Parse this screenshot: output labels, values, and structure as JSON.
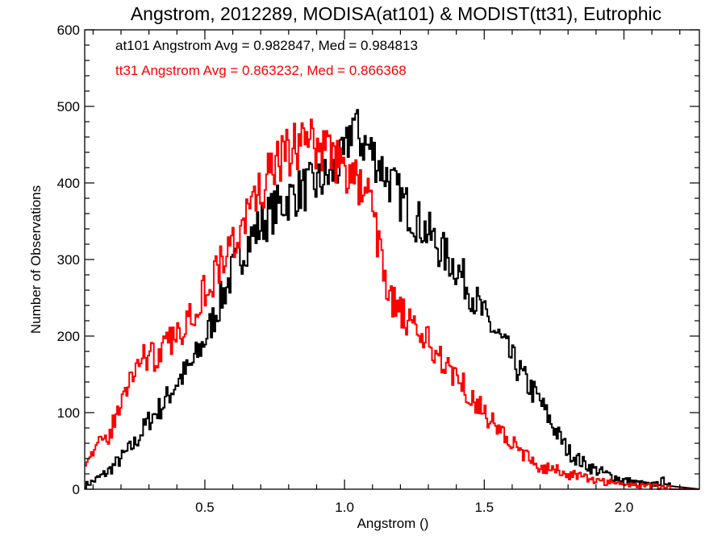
{
  "chart_data": {
    "type": "histogram",
    "title": "Angstrom, 2012289, MODISA(at101) & MODIST(tt31), Eutrophic",
    "xlabel": "Angstrom ()",
    "ylabel": "Number of Observations",
    "xlim": [
      0.07,
      2.27
    ],
    "ylim": [
      0,
      600
    ],
    "x_ticks": [
      0.5,
      1.0,
      1.5,
      2.0
    ],
    "x_tick_labels": [
      "0.5",
      "1.0",
      "1.5",
      "2.0"
    ],
    "y_ticks": [
      0,
      100,
      200,
      300,
      400,
      500,
      600
    ],
    "y_tick_labels": [
      "0",
      "100",
      "200",
      "300",
      "400",
      "500",
      "600"
    ],
    "grid": false,
    "annotations": [
      {
        "text": "at101 Angstrom Avg = 0.982847, Med = 0.984813",
        "color": "#000000"
      },
      {
        "text": "tt31 Angstrom Avg = 0.863232, Med = 0.866368",
        "color": "#ff0000"
      }
    ],
    "series": [
      {
        "color": "#000000",
        "x": [
          0.07,
          0.1,
          0.15,
          0.2,
          0.25,
          0.3,
          0.35,
          0.4,
          0.45,
          0.5,
          0.55,
          0.6,
          0.65,
          0.7,
          0.75,
          0.8,
          0.85,
          0.9,
          0.95,
          1.0,
          1.03,
          1.05,
          1.1,
          1.15,
          1.2,
          1.25,
          1.3,
          1.35,
          1.4,
          1.45,
          1.5,
          1.55,
          1.6,
          1.65,
          1.7,
          1.72,
          1.75,
          1.8,
          1.85,
          1.9,
          1.95,
          2.0,
          2.05,
          2.1,
          2.15,
          2.17,
          2.27
        ],
        "y": [
          5,
          10,
          22,
          40,
          60,
          90,
          110,
          140,
          160,
          195,
          240,
          285,
          320,
          345,
          365,
          380,
          392,
          398,
          410,
          430,
          485,
          460,
          440,
          410,
          380,
          355,
          335,
          310,
          290,
          260,
          225,
          200,
          170,
          140,
          115,
          100,
          80,
          50,
          35,
          25,
          18,
          12,
          8,
          5,
          12,
          0,
          0
        ]
      },
      {
        "color": "#ff0000",
        "x": [
          0.07,
          0.1,
          0.15,
          0.2,
          0.25,
          0.28,
          0.3,
          0.35,
          0.4,
          0.45,
          0.5,
          0.55,
          0.6,
          0.65,
          0.7,
          0.75,
          0.8,
          0.85,
          0.9,
          0.95,
          1.0,
          1.05,
          1.1,
          1.15,
          1.2,
          1.25,
          1.3,
          1.35,
          1.4,
          1.45,
          1.5,
          1.55,
          1.6,
          1.65,
          1.7,
          1.75,
          1.8,
          1.85,
          1.9,
          1.95,
          2.0,
          2.05,
          2.1,
          2.15,
          2.17,
          2.27
        ],
        "y": [
          40,
          50,
          65,
          110,
          160,
          178,
          170,
          180,
          200,
          230,
          260,
          290,
          320,
          355,
          390,
          420,
          440,
          455,
          450,
          440,
          415,
          400,
          370,
          260,
          230,
          205,
          190,
          170,
          150,
          125,
          100,
          80,
          60,
          42,
          30,
          25,
          20,
          15,
          12,
          9,
          7,
          5,
          4,
          3,
          1,
          0
        ]
      }
    ]
  }
}
